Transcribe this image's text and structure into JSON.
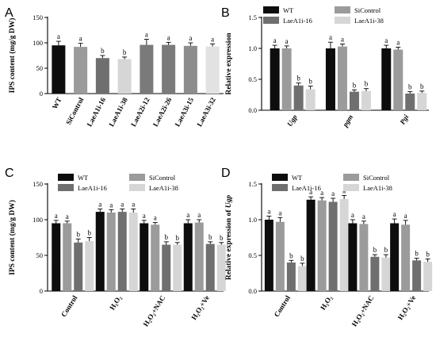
{
  "colors": {
    "WT": "#0d0d0d",
    "SiControl": "#9b9b9b",
    "LaeA1i-16": "#6f6f6f",
    "LaeA1i-38": "#d6d6d6",
    "LaeA2i": "#7a7a7a",
    "LaeA3i": "#8c8c8c",
    "LaeA3i-32": "#e2e2e2"
  },
  "chart_data": [
    {
      "panel": "A",
      "type": "bar",
      "ylabel": "IPS content (mg/g DW)",
      "ylim": [
        0,
        150
      ],
      "yticks": [
        0,
        50,
        100,
        150
      ],
      "categories": [
        "WT",
        "SiControl",
        "LaeA1i-16",
        "LaeA1i-38",
        "LaeA2i-12",
        "LaeA2i-26",
        "LaeA3i-15",
        "LaeA3i-32"
      ],
      "values": [
        95,
        92,
        70,
        68,
        96,
        96,
        94,
        93
      ],
      "errors": [
        8,
        7,
        5,
        4,
        11,
        5,
        6,
        5
      ],
      "letters": [
        "a",
        "a",
        "b",
        "b",
        "a",
        "a",
        "a",
        "a"
      ],
      "bar_colors": [
        "WT",
        "SiControl",
        "LaeA1i-16",
        "LaeA1i-38",
        "LaeA2i",
        "LaeA2i",
        "LaeA3i",
        "LaeA3i-32"
      ]
    },
    {
      "panel": "B",
      "type": "bar",
      "ylabel": "Relative expression",
      "ylim": [
        0,
        1.5
      ],
      "yticks": [
        0.0,
        0.5,
        1.0,
        1.5
      ],
      "categories": [
        "Ugp",
        "pgm",
        "Pgi"
      ],
      "legend": [
        "WT",
        "SiControl",
        "LaeA1i-16",
        "LaeA1i-38"
      ],
      "series": [
        {
          "name": "WT",
          "values": [
            1.0,
            1.0,
            1.0
          ],
          "errors": [
            0.05,
            0.1,
            0.05
          ],
          "letters": [
            "a",
            "a",
            "a"
          ]
        },
        {
          "name": "SiControl",
          "values": [
            1.0,
            1.03,
            0.98
          ],
          "errors": [
            0.04,
            0.04,
            0.04
          ],
          "letters": [
            "a",
            "a",
            "a"
          ]
        },
        {
          "name": "LaeA1i-16",
          "values": [
            0.4,
            0.3,
            0.27
          ],
          "errors": [
            0.04,
            0.03,
            0.03
          ],
          "letters": [
            "b",
            "b",
            "b"
          ]
        },
        {
          "name": "LaeA1i-38",
          "values": [
            0.34,
            0.31,
            0.28
          ],
          "errors": [
            0.05,
            0.04,
            0.03
          ],
          "letters": [
            "b",
            "b",
            "b"
          ]
        }
      ]
    },
    {
      "panel": "C",
      "type": "bar",
      "ylabel": "IPS content (mg/g DW)",
      "ylim": [
        0,
        150
      ],
      "yticks": [
        0,
        50,
        100,
        150
      ],
      "categories": [
        "Control",
        "H₂O₂",
        "H₂O₂+NAC",
        "H₂O₂+Ve"
      ],
      "legend": [
        "WT",
        "SiControl",
        "LaeA1i-16",
        "LaeA1i-38"
      ],
      "series": [
        {
          "name": "WT",
          "values": [
            95,
            111,
            95,
            95
          ],
          "errors": [
            4,
            4,
            4,
            5
          ],
          "letters": [
            "a",
            "a",
            "a",
            "a"
          ]
        },
        {
          "name": "SiControl",
          "values": [
            95,
            110,
            93,
            96
          ],
          "errors": [
            3,
            4,
            3,
            4
          ],
          "letters": [
            "a",
            "a",
            "a",
            "a"
          ]
        },
        {
          "name": "LaeA1i-16",
          "values": [
            68,
            111,
            65,
            66
          ],
          "errors": [
            5,
            4,
            4,
            3
          ],
          "letters": [
            "b",
            "a",
            "b",
            "b"
          ]
        },
        {
          "name": "LaeA1i-38",
          "values": [
            70,
            110,
            65,
            65
          ],
          "errors": [
            5,
            5,
            3,
            3
          ],
          "letters": [
            "b",
            "a",
            "b",
            "b"
          ]
        }
      ]
    },
    {
      "panel": "D",
      "type": "bar",
      "ylabel_prefix": "Relative expression of ",
      "ylabel_gene": "Ugp",
      "ylim": [
        0,
        1.5
      ],
      "yticks": [
        0.0,
        0.5,
        1.0,
        1.5
      ],
      "categories": [
        "Control",
        "H₂O₂",
        "H₂O₂+NAC",
        "H₂O₂+Ve"
      ],
      "legend": [
        "WT",
        "SiControl",
        "LaeA1i-16",
        "LaeA1i-38"
      ],
      "series": [
        {
          "name": "WT",
          "values": [
            1.0,
            1.28,
            0.95,
            0.95
          ],
          "errors": [
            0.05,
            0.04,
            0.05,
            0.06
          ],
          "letters": [
            "a",
            "a",
            "a",
            "a"
          ]
        },
        {
          "name": "SiControl",
          "values": [
            0.97,
            1.27,
            0.94,
            0.93
          ],
          "errors": [
            0.06,
            0.04,
            0.04,
            0.06
          ],
          "letters": [
            "a",
            "a",
            "a",
            "a"
          ]
        },
        {
          "name": "LaeA1i-16",
          "values": [
            0.4,
            1.25,
            0.48,
            0.43
          ],
          "errors": [
            0.03,
            0.05,
            0.03,
            0.03
          ],
          "letters": [
            "b",
            "a",
            "b",
            "b"
          ]
        },
        {
          "name": "LaeA1i-38",
          "values": [
            0.35,
            1.29,
            0.47,
            0.41
          ],
          "errors": [
            0.04,
            0.05,
            0.04,
            0.04
          ],
          "letters": [
            "b",
            "a",
            "b",
            "b"
          ]
        }
      ]
    }
  ]
}
